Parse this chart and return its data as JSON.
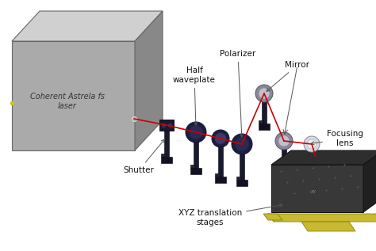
{
  "bg_color": "#ffffff",
  "beam_color": "#cc0000",
  "arrow_color": "#555555",
  "laser_label": "Coherent Astrela fs\nlaser",
  "labels": {
    "shutter": "Shutter",
    "half_waveplate": "Half\nwaveplate",
    "polarizer": "Polarizer",
    "mirror": "Mirror",
    "focusing_lens": "Focusing\nlens",
    "xyz_stages": "XYZ translation\nstages"
  },
  "laser_front_color": "#aaaaaa",
  "laser_top_color": "#d0d0d0",
  "laser_side_color": "#888888",
  "stage_top_color": "#2a2a2a",
  "stage_front_color": "#383838",
  "stage_side_color": "#1e1e1e",
  "stage_grid_color": "#444444",
  "yellow_color": "#c8b832",
  "mount_color": "#1a1a2e",
  "mount_base_color": "#111122",
  "mirror_color": "#aaaaaa"
}
